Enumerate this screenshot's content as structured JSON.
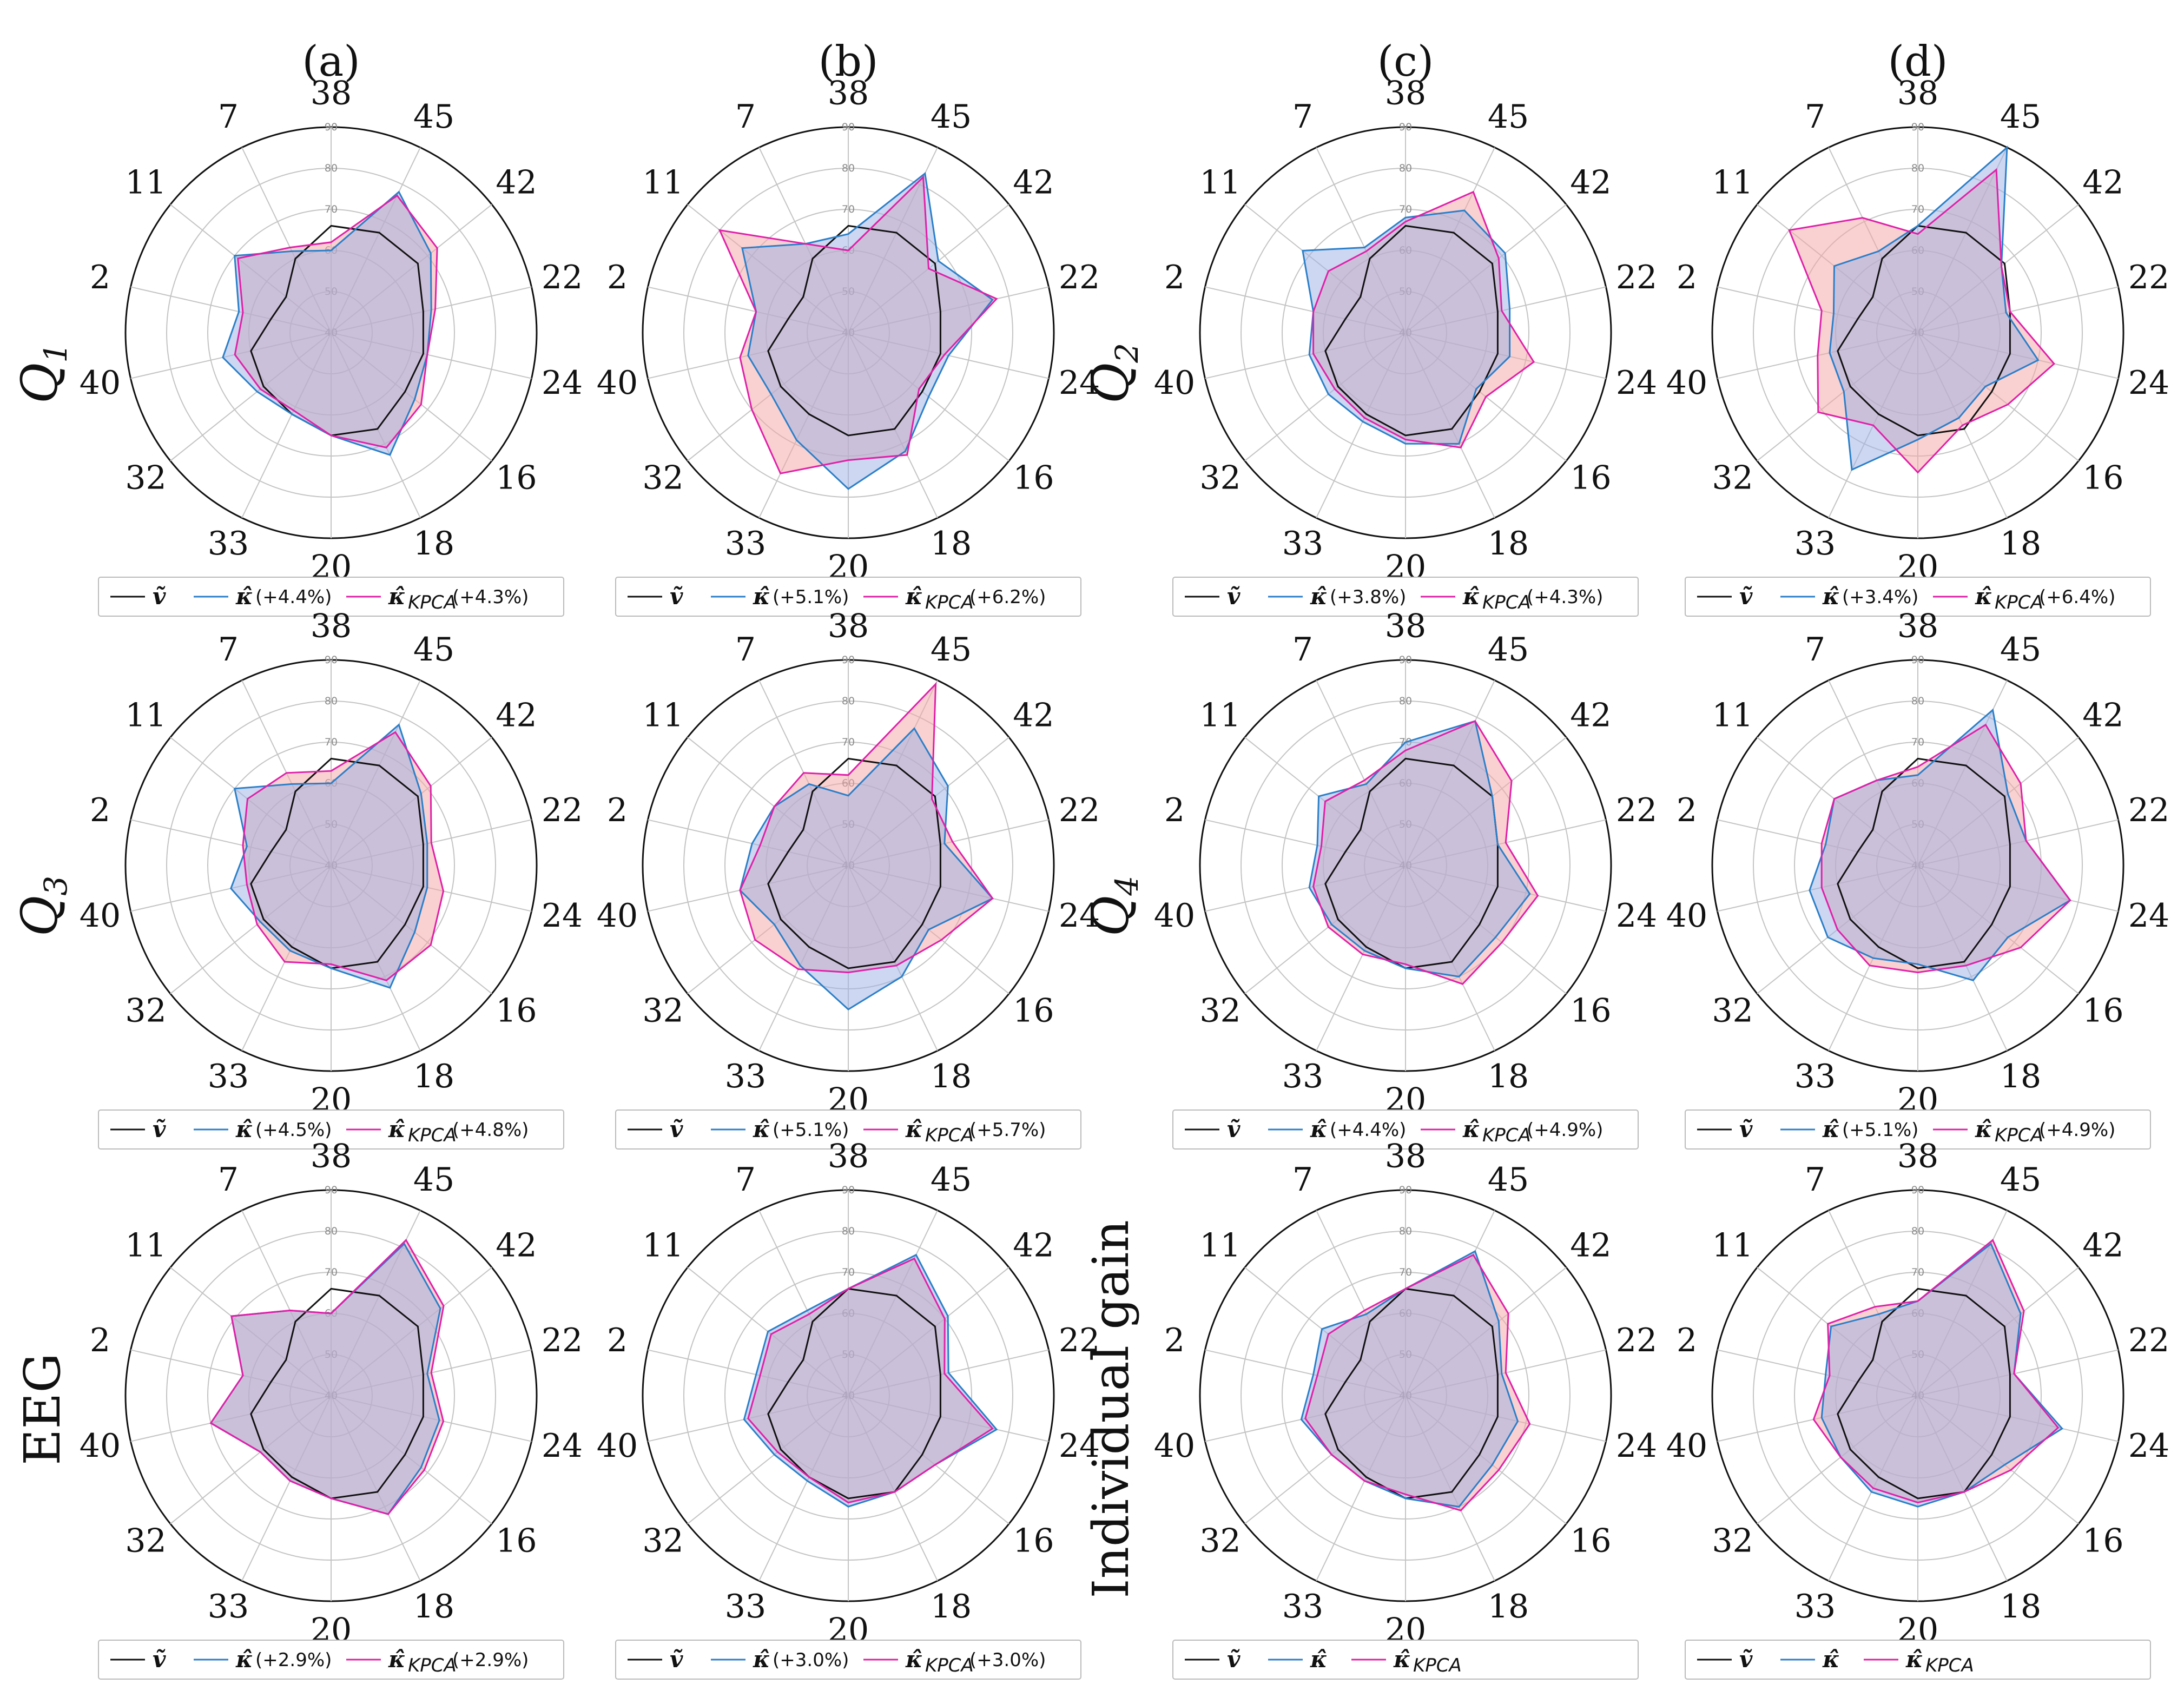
{
  "column_titles": [
    "(a)",
    "(b)",
    "(c)",
    "(d)"
  ],
  "row_titles": [
    {
      "base": "Q",
      "sub": "1",
      "italic": true
    },
    {
      "base": "Q",
      "sub": "3",
      "italic": true
    },
    {
      "base": "EEG",
      "sub": "",
      "italic": false
    },
    {
      "base": "Q",
      "sub": "2",
      "italic": true
    },
    {
      "base": "Q",
      "sub": "4",
      "italic": true
    },
    {
      "base": "Individual gain",
      "sub": "",
      "italic": false
    }
  ],
  "colors": {
    "baseline": "#111111",
    "kappa": "#2a7fc9",
    "kpca": "#e020a8",
    "kappa_fill": "#9bb0e3",
    "kpca_fill": "#f5a3a3"
  },
  "legend_symbols": {
    "baseline": "ṽ",
    "kappa": "κ̂",
    "kpca_base": "κ̂",
    "kpca_sub": "KPCA"
  },
  "chart_data": [
    {
      "type": "radar",
      "id": "Q1-a",
      "categories": [
        "38",
        "45",
        "42",
        "22",
        "24",
        "16",
        "18",
        "20",
        "33",
        "32",
        "40",
        "2",
        "11",
        "7"
      ],
      "rings": [
        40,
        50,
        60,
        70,
        80,
        90
      ],
      "rlim": [
        40,
        90
      ],
      "series": [
        {
          "name": "ṽ",
          "values": [
            66,
            67,
            67,
            63,
            63,
            63,
            66,
            65,
            62,
            61,
            60,
            55,
            54,
            60
          ]
        },
        {
          "name": "κ̂",
          "values": [
            60,
            78,
            71,
            65,
            64,
            66,
            73,
            65,
            62,
            63,
            67,
            63,
            70,
            62
          ]
        },
        {
          "name": "κ̂_KPCA",
          "values": [
            62,
            77,
            73,
            66,
            64,
            68,
            71,
            65,
            61,
            62,
            64,
            62,
            69,
            63
          ]
        }
      ],
      "legend": {
        "kappa": "(+4.4%)",
        "kpca": "(+4.3%)"
      }
    },
    {
      "type": "radar",
      "id": "Q1-b",
      "categories": [
        "38",
        "45",
        "42",
        "22",
        "24",
        "16",
        "18",
        "20",
        "33",
        "32",
        "40",
        "2",
        "11",
        "7"
      ],
      "rings": [
        40,
        50,
        60,
        70,
        80,
        90
      ],
      "rlim": [
        40,
        90
      ],
      "series": [
        {
          "name": "ṽ",
          "values": [
            66,
            67,
            67,
            63,
            63,
            63,
            66,
            65,
            62,
            61,
            60,
            55,
            54,
            60
          ]
        },
        {
          "name": "κ̂",
          "values": [
            64,
            83,
            68,
            76,
            65,
            65,
            72,
            78,
            69,
            64,
            65,
            63,
            73,
            64
          ]
        },
        {
          "name": "κ̂_KPCA",
          "values": [
            60,
            82,
            65,
            77,
            64,
            62,
            73,
            71,
            78,
            70,
            67,
            63,
            80,
            64
          ]
        }
      ],
      "legend": {
        "kappa": "(+5.1%)",
        "kpca": "(+6.2%)"
      }
    },
    {
      "type": "radar",
      "id": "Q2-c",
      "categories": [
        "38",
        "45",
        "42",
        "22",
        "24",
        "16",
        "18",
        "20",
        "33",
        "32",
        "40",
        "2",
        "11",
        "7"
      ],
      "rings": [
        40,
        50,
        60,
        70,
        80,
        90
      ],
      "rlim": [
        40,
        90
      ],
      "series": [
        {
          "name": "ṽ",
          "values": [
            66,
            67,
            67,
            63,
            63,
            63,
            66,
            65,
            62,
            61,
            60,
            55,
            54,
            60
          ]
        },
        {
          "name": "κ̂",
          "values": [
            68,
            73,
            71,
            66,
            66,
            62,
            70,
            67,
            64,
            64,
            64,
            63,
            72,
            63
          ]
        },
        {
          "name": "κ̂_KPCA",
          "values": [
            67,
            78,
            69,
            64,
            72,
            65,
            71,
            66,
            63,
            62,
            63,
            63,
            64,
            62
          ]
        }
      ],
      "legend": {
        "kappa": "(+3.8%)",
        "kpca": "(+4.3%)"
      }
    },
    {
      "type": "radar",
      "id": "Q2-d",
      "categories": [
        "38",
        "45",
        "42",
        "22",
        "24",
        "16",
        "18",
        "20",
        "33",
        "32",
        "40",
        "2",
        "11",
        "7"
      ],
      "rings": [
        40,
        50,
        60,
        70,
        80,
        90
      ],
      "rlim": [
        40,
        90
      ],
      "series": [
        {
          "name": "ṽ",
          "values": [
            66,
            67,
            67,
            63,
            63,
            63,
            66,
            65,
            62,
            61,
            60,
            55,
            54,
            60
          ]
        },
        {
          "name": "κ̂",
          "values": [
            66,
            90,
            66,
            62,
            70,
            61,
            63,
            66,
            77,
            63,
            62,
            61,
            66,
            62
          ]
        },
        {
          "name": "κ̂_KPCA",
          "values": [
            64,
            84,
            66,
            63,
            74,
            68,
            65,
            74,
            65,
            71,
            65,
            64,
            80,
            71
          ]
        }
      ],
      "legend": {
        "kappa": "(+3.4%)",
        "kpca": "(+6.4%)"
      }
    },
    {
      "type": "radar",
      "id": "Q3-a",
      "categories": [
        "38",
        "45",
        "42",
        "22",
        "24",
        "16",
        "18",
        "20",
        "33",
        "32",
        "40",
        "2",
        "11",
        "7"
      ],
      "rings": [
        40,
        50,
        60,
        70,
        80,
        90
      ],
      "rlim": [
        40,
        90
      ],
      "series": [
        {
          "name": "ṽ",
          "values": [
            66,
            67,
            67,
            63,
            63,
            63,
            66,
            65,
            62,
            61,
            60,
            55,
            54,
            60
          ]
        },
        {
          "name": "κ̂",
          "values": [
            60,
            78,
            68,
            64,
            64,
            66,
            73,
            65,
            63,
            62,
            65,
            61,
            70,
            62
          ]
        },
        {
          "name": "κ̂_KPCA",
          "values": [
            63,
            76,
            71,
            65,
            68,
            71,
            71,
            64,
            66,
            63,
            61,
            62,
            66,
            65
          ]
        }
      ],
      "legend": {
        "kappa": "(+4.5%)",
        "kpca": "(+4.8%)"
      }
    },
    {
      "type": "radar",
      "id": "Q3-b",
      "categories": [
        "38",
        "45",
        "42",
        "22",
        "24",
        "16",
        "18",
        "20",
        "33",
        "32",
        "40",
        "2",
        "11",
        "7"
      ],
      "rings": [
        40,
        50,
        60,
        70,
        80,
        90
      ],
      "rlim": [
        40,
        90
      ],
      "series": [
        {
          "name": "ṽ",
          "values": [
            66,
            67,
            67,
            63,
            63,
            63,
            66,
            65,
            62,
            61,
            60,
            55,
            54,
            60
          ]
        },
        {
          "name": "κ̂",
          "values": [
            57,
            77,
            71,
            64,
            76,
            65,
            70,
            75,
            67,
            63,
            67,
            64,
            63,
            62
          ]
        },
        {
          "name": "κ̂_KPCA",
          "values": [
            62,
            89,
            66,
            66,
            76,
            69,
            67,
            66,
            68,
            69,
            67,
            62,
            63,
            65
          ]
        }
      ],
      "legend": {
        "kappa": "(+5.1%)",
        "kpca": "(+5.7%)"
      }
    },
    {
      "type": "radar",
      "id": "Q4-c",
      "categories": [
        "38",
        "45",
        "42",
        "22",
        "24",
        "16",
        "18",
        "20",
        "33",
        "32",
        "40",
        "2",
        "11",
        "7"
      ],
      "rings": [
        40,
        50,
        60,
        70,
        80,
        90
      ],
      "rlim": [
        40,
        90
      ],
      "series": [
        {
          "name": "ṽ",
          "values": [
            66,
            67,
            67,
            63,
            63,
            63,
            66,
            65,
            62,
            61,
            60,
            55,
            54,
            60
          ]
        },
        {
          "name": "κ̂",
          "values": [
            70,
            79,
            67,
            63,
            71,
            68,
            70,
            65,
            63,
            63,
            64,
            62,
            67,
            62
          ]
        },
        {
          "name": "κ̂_KPCA",
          "values": [
            68,
            79,
            73,
            65,
            73,
            70,
            72,
            64,
            64,
            64,
            63,
            61,
            65,
            63
          ]
        }
      ],
      "legend": {
        "kappa": "(+4.4%)",
        "kpca": "(+4.9%)"
      }
    },
    {
      "type": "radar",
      "id": "Q4-d",
      "categories": [
        "38",
        "45",
        "42",
        "22",
        "24",
        "16",
        "18",
        "20",
        "33",
        "32",
        "40",
        "2",
        "11",
        "7"
      ],
      "rings": [
        40,
        50,
        60,
        70,
        80,
        90
      ],
      "rlim": [
        40,
        90
      ],
      "series": [
        {
          "name": "ṽ",
          "values": [
            66,
            67,
            67,
            63,
            63,
            63,
            66,
            65,
            62,
            61,
            60,
            55,
            54,
            60
          ]
        },
        {
          "name": "κ̂",
          "values": [
            62,
            82,
            68,
            67,
            78,
            68,
            71,
            64,
            65,
            68,
            67,
            63,
            66,
            63
          ]
        },
        {
          "name": "κ̂_KPCA",
          "values": [
            64,
            78,
            72,
            67,
            78,
            72,
            67,
            66,
            67,
            65,
            64,
            64,
            66,
            63
          ]
        }
      ],
      "legend": {
        "kappa": "(+5.1%)",
        "kpca": "(+4.9%)"
      }
    },
    {
      "type": "radar",
      "id": "EEG-a",
      "categories": [
        "38",
        "45",
        "42",
        "22",
        "24",
        "16",
        "18",
        "20",
        "33",
        "32",
        "40",
        "2",
        "11",
        "7"
      ],
      "rings": [
        40,
        50,
        60,
        70,
        80,
        90
      ],
      "rlim": [
        40,
        90
      ],
      "series": [
        {
          "name": "ṽ",
          "values": [
            66,
            67,
            67,
            63,
            63,
            63,
            66,
            65,
            62,
            61,
            60,
            55,
            54,
            60
          ]
        },
        {
          "name": "κ̂",
          "values": [
            60,
            81,
            74,
            64,
            67,
            68,
            72,
            65,
            63,
            62,
            70,
            62,
            71,
            63
          ]
        },
        {
          "name": "κ̂_KPCA",
          "values": [
            60,
            82,
            75,
            65,
            68,
            69,
            72,
            65,
            63,
            62,
            70,
            62,
            71,
            63
          ]
        }
      ],
      "legend": {
        "kappa": "(+2.9%)",
        "kpca": "(+2.9%)"
      }
    },
    {
      "type": "radar",
      "id": "EEG-b",
      "categories": [
        "38",
        "45",
        "42",
        "22",
        "24",
        "16",
        "18",
        "20",
        "33",
        "32",
        "40",
        "2",
        "11",
        "7"
      ],
      "rings": [
        40,
        50,
        60,
        70,
        80,
        90
      ],
      "rlim": [
        40,
        90
      ],
      "series": [
        {
          "name": "ṽ",
          "values": [
            66,
            67,
            67,
            63,
            63,
            63,
            66,
            65,
            62,
            61,
            60,
            55,
            54,
            60
          ]
        },
        {
          "name": "κ̂",
          "values": [
            66,
            78,
            71,
            65,
            77,
            67,
            66,
            67,
            63,
            63,
            66,
            63,
            65,
            63
          ]
        },
        {
          "name": "κ̂_KPCA",
          "values": [
            66,
            77,
            70,
            64,
            76,
            67,
            66,
            66,
            62,
            62,
            65,
            62,
            64,
            62
          ]
        }
      ],
      "legend": {
        "kappa": "(+3.0%)",
        "kpca": "(+3.0%)"
      }
    },
    {
      "type": "radar",
      "id": "IG-c",
      "categories": [
        "38",
        "45",
        "42",
        "22",
        "24",
        "16",
        "18",
        "20",
        "33",
        "32",
        "40",
        "2",
        "11",
        "7"
      ],
      "rings": [
        40,
        50,
        60,
        70,
        80,
        90
      ],
      "rlim": [
        40,
        90
      ],
      "series": [
        {
          "name": "ṽ",
          "values": [
            66,
            67,
            67,
            63,
            63,
            63,
            66,
            65,
            62,
            61,
            60,
            55,
            54,
            60
          ]
        },
        {
          "name": "κ̂",
          "values": [
            66,
            79,
            69,
            64,
            68,
            67,
            70,
            65,
            63,
            63,
            66,
            63,
            66,
            62
          ]
        },
        {
          "name": "κ̂_KPCA",
          "values": [
            66,
            78,
            72,
            65,
            71,
            69,
            71,
            64,
            63,
            63,
            65,
            62,
            64,
            63
          ]
        }
      ],
      "legend": {
        "kappa": "",
        "kpca": ""
      }
    },
    {
      "type": "radar",
      "id": "IG-d",
      "categories": [
        "38",
        "45",
        "42",
        "22",
        "24",
        "16",
        "18",
        "20",
        "33",
        "32",
        "40",
        "2",
        "11",
        "7"
      ],
      "rings": [
        40,
        50,
        60,
        70,
        80,
        90
      ],
      "rlim": [
        40,
        90
      ],
      "series": [
        {
          "name": "ṽ",
          "values": [
            66,
            67,
            67,
            63,
            63,
            63,
            66,
            65,
            62,
            61,
            60,
            55,
            54,
            60
          ]
        },
        {
          "name": "κ̂",
          "values": [
            63,
            81,
            72,
            64,
            76,
            67,
            66,
            67,
            66,
            64,
            64,
            63,
            67,
            62
          ]
        },
        {
          "name": "κ̂_KPCA",
          "values": [
            63,
            82,
            73,
            64,
            75,
            69,
            66,
            66,
            65,
            64,
            66,
            62,
            68,
            64
          ]
        }
      ],
      "legend": {
        "kappa": "",
        "kpca": ""
      }
    }
  ]
}
